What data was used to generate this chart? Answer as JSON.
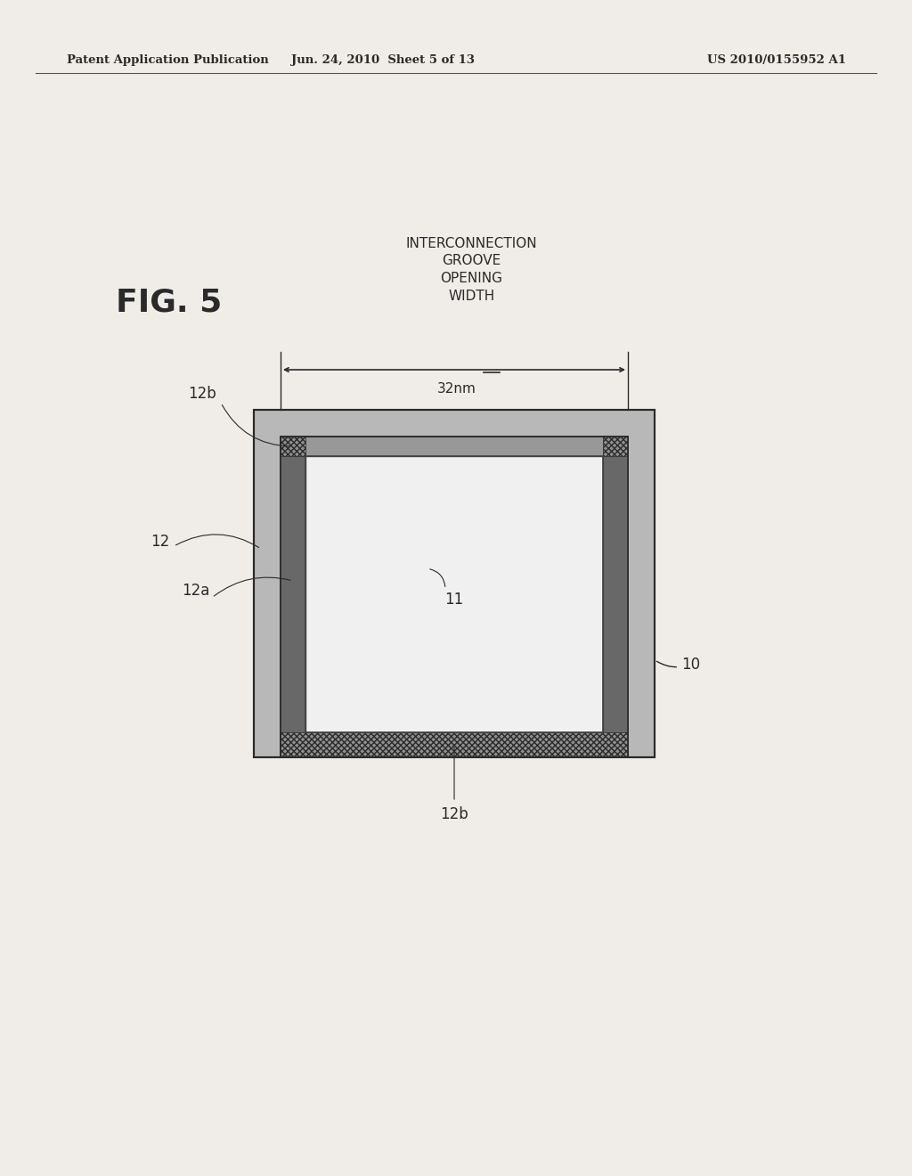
{
  "bg_color": "#f0ede8",
  "header_left": "Patent Application Publication",
  "header_mid": "Jun. 24, 2010  Sheet 5 of 13",
  "header_right": "US 2010/0155952 A1",
  "fig_label": "FIG. 5",
  "annotation_text": "INTERCONNECTION\nGROOVE\nOPENING\nWIDTH",
  "dimension_label": "32nm",
  "label_10": "10",
  "label_11": "11",
  "label_12": "12",
  "label_12a": "12a",
  "label_12b_top": "12b",
  "label_12b_bot": "12b",
  "outer_color": "#b8b8b8",
  "groove_color": "#989898",
  "barrier_color": "#686868",
  "hatch_color": "#787878",
  "center_color": "#f0f0f0",
  "line_color": "#2a2a2a"
}
